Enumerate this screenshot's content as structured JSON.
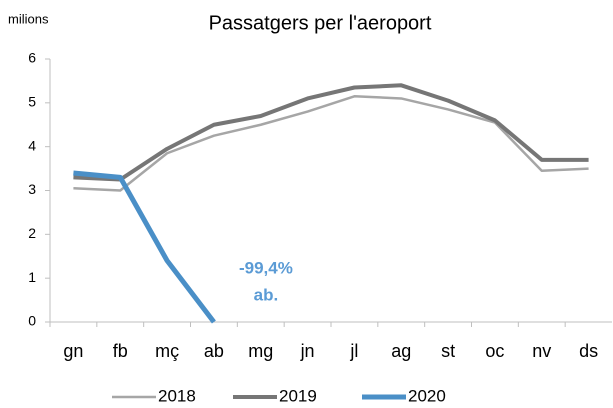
{
  "chart_data": {
    "type": "line",
    "title": "Passatgers per l'aeroport",
    "y_label": "milions",
    "categories": [
      "gn",
      "fb",
      "mç",
      "ab",
      "mg",
      "jn",
      "jl",
      "ag",
      "st",
      "oc",
      "nv",
      "ds"
    ],
    "series": [
      {
        "name": "2018",
        "color": "#a6a6a6",
        "width": 2.5,
        "values": [
          3.05,
          3.0,
          3.85,
          4.25,
          4.5,
          4.8,
          5.15,
          5.1,
          4.85,
          4.55,
          3.45,
          3.5
        ]
      },
      {
        "name": "2019",
        "color": "#767676",
        "width": 4,
        "values": [
          3.3,
          3.25,
          3.95,
          4.5,
          4.7,
          5.1,
          5.35,
          5.4,
          5.05,
          4.6,
          3.7,
          3.7
        ]
      },
      {
        "name": "2020",
        "color": "#4a8fc7",
        "width": 5,
        "values": [
          3.4,
          3.3,
          1.4,
          0,
          null,
          null,
          null,
          null,
          null,
          null,
          null,
          null
        ]
      }
    ],
    "annotation": [
      "-99,4%",
      "ab."
    ],
    "annotation_color": "#5b9bd5",
    "ylim": [
      0,
      6
    ],
    "yticks": [
      0,
      1,
      2,
      3,
      4,
      5,
      6
    ],
    "grid": false,
    "legend": "bottom"
  }
}
